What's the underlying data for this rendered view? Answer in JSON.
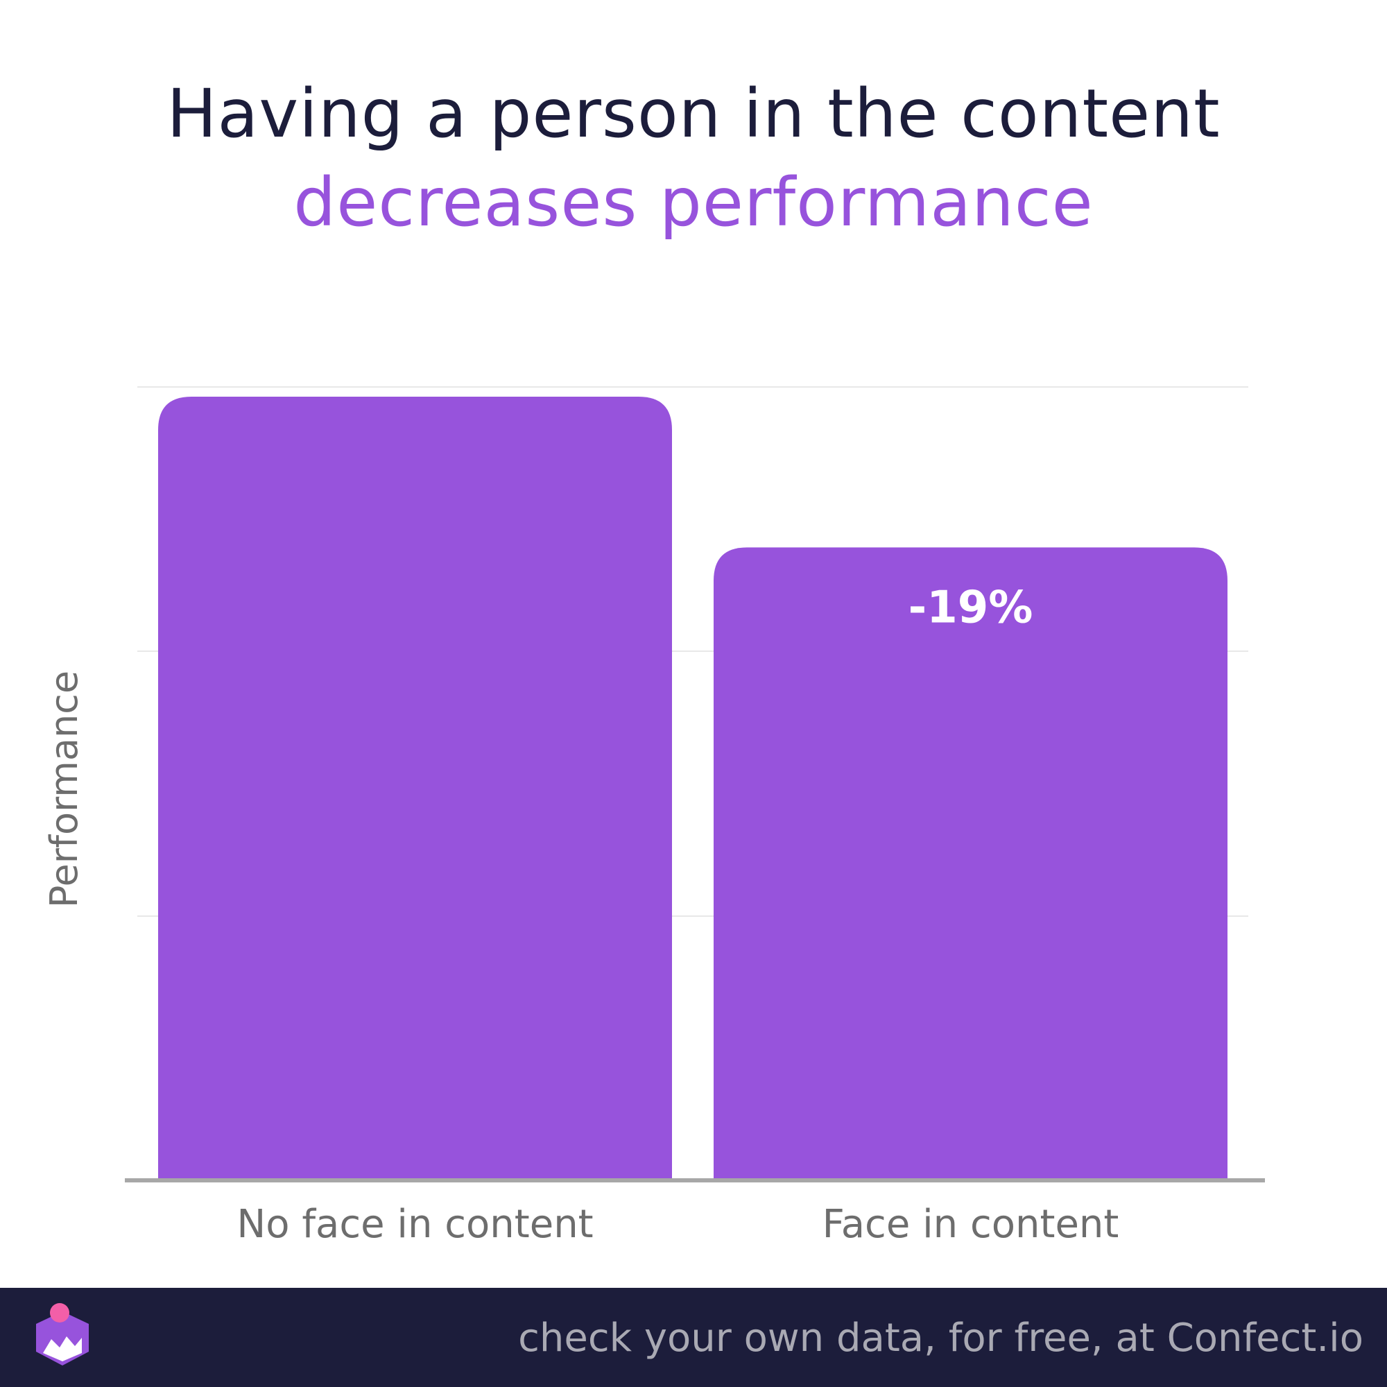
{
  "header": {
    "title_line1": "Having a person in the content",
    "title_line2": "decreases performance"
  },
  "footer": {
    "text": "check your own data, for free, at Confect.io",
    "logo_icon": "confect-logo-icon"
  },
  "colors": {
    "bar": "#9753dc",
    "title_dark": "#1c1d3b",
    "title_accent": "#9753dc",
    "footer_bg": "#1c1d3b",
    "gridline": "#e8e8e8",
    "axis": "#a7a7a7"
  },
  "chart_data": {
    "type": "bar",
    "title": "Having a person in the content decreases performance",
    "categories": [
      "No face in content",
      "Face in content"
    ],
    "values": [
      100,
      81
    ],
    "data_labels": [
      "",
      "-19%"
    ],
    "xlabel": "",
    "ylabel": "Performance",
    "ylim": [
      0,
      100
    ],
    "grid": true,
    "legend": "none"
  }
}
